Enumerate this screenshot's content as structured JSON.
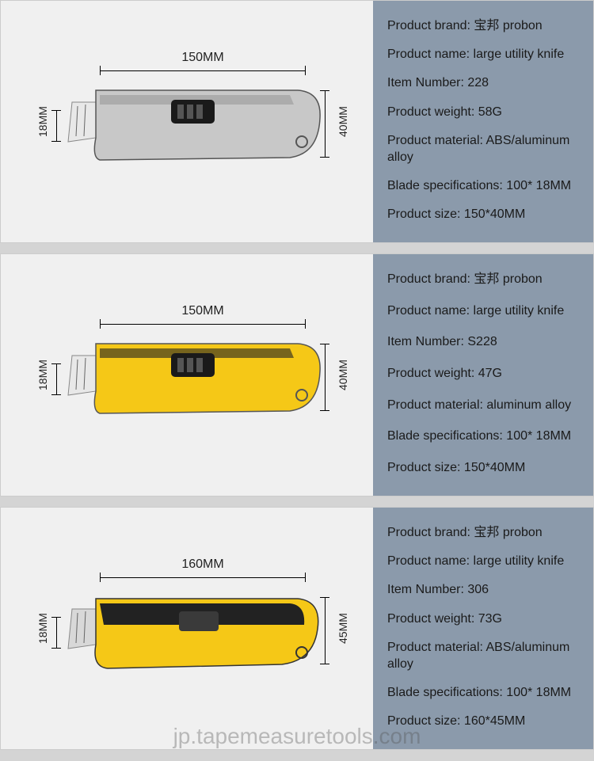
{
  "watermark": "jp.tapemeasuretools.com",
  "products": [
    {
      "dimensions": {
        "width": "150MM",
        "blade_height": "18MM",
        "body_height": "40MM"
      },
      "colors": {
        "body": "#c8c8c8",
        "slider": "#1a1a1a",
        "blade": "#e8e8e8",
        "accent": "#999"
      },
      "specs": [
        {
          "label": "Product brand:",
          "value": " 宝邦 probon"
        },
        {
          "label": "Product name:",
          "value": " large utility knife"
        },
        {
          "label": "Item Number:",
          "value": " 228"
        },
        {
          "label": "Product weight:",
          "value": " 58G"
        },
        {
          "label": "Product material:",
          "value": " ABS/aluminum alloy"
        },
        {
          "label": "Blade specifications:",
          "value": " 100* 18MM"
        },
        {
          "label": "Product size:",
          "value": " 150*40MM"
        }
      ]
    },
    {
      "dimensions": {
        "width": "150MM",
        "blade_height": "18MM",
        "body_height": "40MM"
      },
      "colors": {
        "body": "#f5c817",
        "slider": "#1a1a1a",
        "blade": "#e8e8e8",
        "accent": "#222"
      },
      "specs": [
        {
          "label": "Product brand:",
          "value": " 宝邦 probon"
        },
        {
          "label": "Product name:",
          "value": " large utility knife"
        },
        {
          "label": "Item Number:",
          "value": " S228"
        },
        {
          "label": "Product weight:",
          "value": " 47G"
        },
        {
          "label": "Product material:",
          "value": " aluminum alloy"
        },
        {
          "label": "Blade specifications:",
          "value": " 100* 18MM"
        },
        {
          "label": "Product size:",
          "value": " 150*40MM"
        }
      ]
    },
    {
      "dimensions": {
        "width": "160MM",
        "blade_height": "18MM",
        "body_height": "45MM"
      },
      "colors": {
        "body": "#f5c817",
        "slider": "#3a3a3a",
        "blade": "#d8d8d8",
        "accent": "#222"
      },
      "specs": [
        {
          "label": "Product brand:",
          "value": " 宝邦 probon"
        },
        {
          "label": "Product name:",
          "value": " large utility knife"
        },
        {
          "label": "Item Number:",
          "value": " 306"
        },
        {
          "label": "Product weight:",
          "value": " 73G"
        },
        {
          "label": "Product material:",
          "value": " ABS/aluminum alloy"
        },
        {
          "label": "Blade specifications:",
          "value": " 100* 18MM"
        },
        {
          "label": "Product size:",
          "value": " 160*45MM"
        }
      ]
    }
  ]
}
